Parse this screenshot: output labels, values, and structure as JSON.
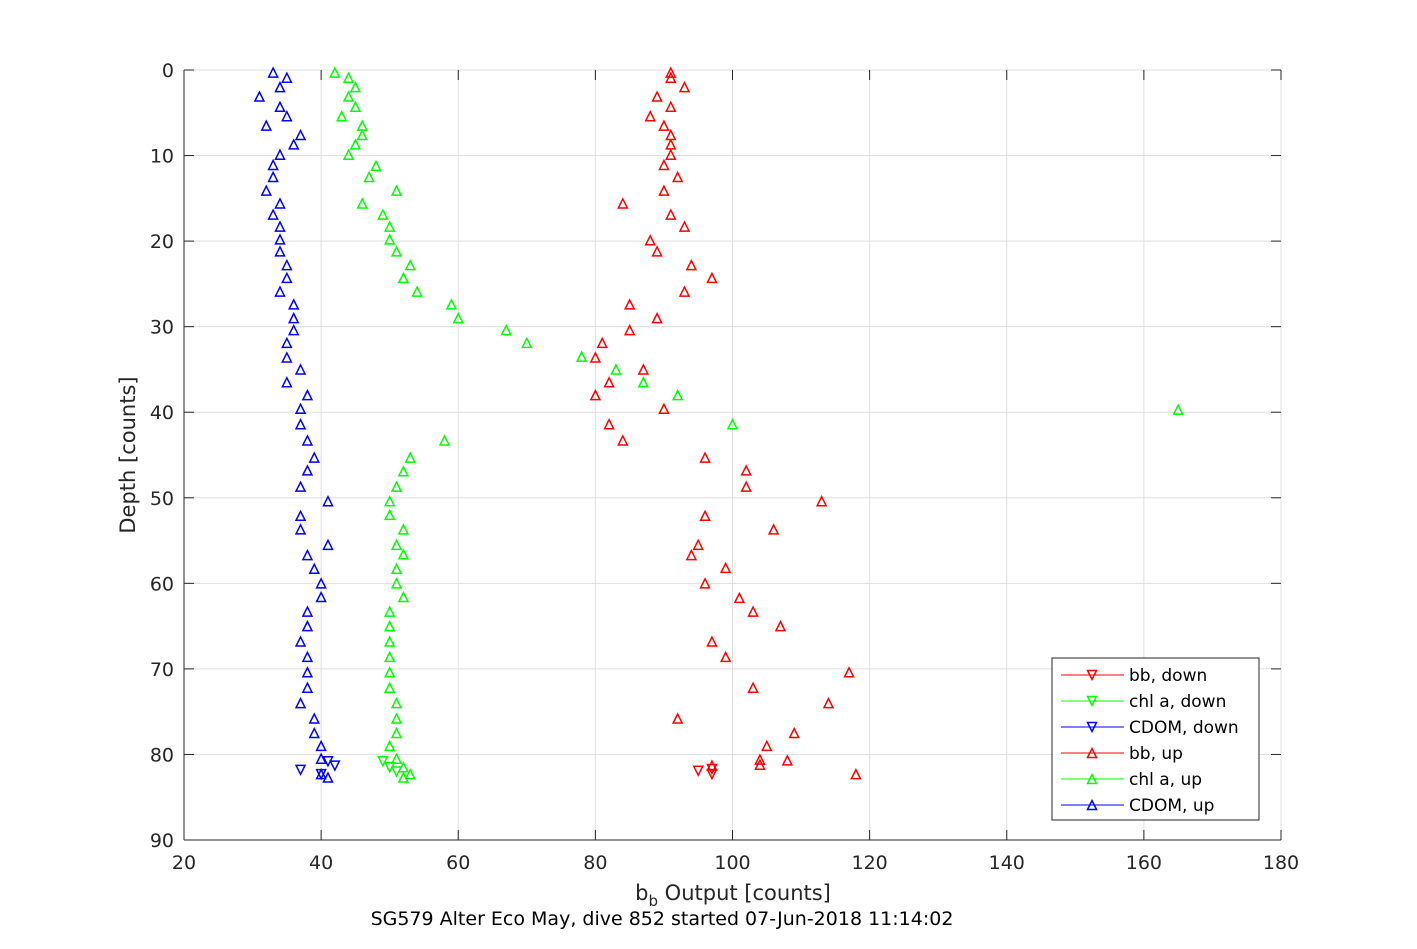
{
  "chart_data": {
    "type": "scatter",
    "xlabel": "b",
    "xlabel_subscript": "b",
    "xlabel_suffix": " Output [counts]",
    "ylabel": "Depth [counts]",
    "caption": "SG579 Alter Eco May, dive 852 started 07-Jun-2018 11:14:02",
    "xlim": [
      20,
      180
    ],
    "ylim": [
      0,
      90
    ],
    "y_reversed": true,
    "grid": true,
    "legend_position": "bottom-right",
    "xticks": [
      20,
      40,
      60,
      80,
      100,
      120,
      140,
      160,
      180
    ],
    "yticks": [
      0,
      10,
      20,
      30,
      40,
      50,
      60,
      70,
      80,
      90
    ],
    "series": [
      {
        "name": "bb, down",
        "color": "#ff0000",
        "marker": "triangle-down",
        "points": [
          [
            97,
            81.7
          ],
          [
            97,
            82.3
          ],
          [
            95,
            81.9
          ]
        ]
      },
      {
        "name": "chl a, down",
        "color": "#00ff00",
        "marker": "triangle-down",
        "points": [
          [
            49,
            80.8
          ],
          [
            50,
            81.5
          ],
          [
            51,
            82.0
          ]
        ]
      },
      {
        "name": "CDOM, down",
        "color": "#0000ff",
        "marker": "triangle-down",
        "points": [
          [
            37,
            81.8
          ],
          [
            40,
            82.3
          ],
          [
            42,
            81.3
          ],
          [
            41,
            80.8
          ]
        ]
      },
      {
        "name": "bb, up",
        "color": "#ff0000",
        "marker": "triangle-up",
        "points": [
          [
            91,
            0.3
          ],
          [
            91,
            0.9
          ],
          [
            93,
            2.0
          ],
          [
            89,
            3.1
          ],
          [
            91,
            4.3
          ],
          [
            88,
            5.4
          ],
          [
            90,
            6.5
          ],
          [
            91,
            7.6
          ],
          [
            91,
            8.7
          ],
          [
            91,
            9.9
          ],
          [
            90,
            11.1
          ],
          [
            92,
            12.5
          ],
          [
            90,
            14.1
          ],
          [
            84,
            15.6
          ],
          [
            91,
            16.9
          ],
          [
            93,
            18.3
          ],
          [
            88,
            19.9
          ],
          [
            89,
            21.2
          ],
          [
            94,
            22.8
          ],
          [
            97,
            24.3
          ],
          [
            93,
            25.9
          ],
          [
            85,
            27.4
          ],
          [
            89,
            29.0
          ],
          [
            85,
            30.4
          ],
          [
            81,
            31.9
          ],
          [
            80,
            33.6
          ],
          [
            87,
            35.0
          ],
          [
            82,
            36.5
          ],
          [
            80,
            38.0
          ],
          [
            90,
            39.6
          ],
          [
            82,
            41.4
          ],
          [
            84,
            43.3
          ],
          [
            96,
            45.3
          ],
          [
            102,
            46.8
          ],
          [
            102,
            48.7
          ],
          [
            113,
            50.4
          ],
          [
            96,
            52.1
          ],
          [
            106,
            53.7
          ],
          [
            95,
            55.5
          ],
          [
            94,
            56.7
          ],
          [
            99,
            58.2
          ],
          [
            96,
            60.0
          ],
          [
            101,
            61.7
          ],
          [
            103,
            63.3
          ],
          [
            107,
            65.0
          ],
          [
            97,
            66.8
          ],
          [
            99,
            68.6
          ],
          [
            117,
            70.4
          ],
          [
            103,
            72.2
          ],
          [
            114,
            74.0
          ],
          [
            92,
            75.8
          ],
          [
            109,
            77.5
          ],
          [
            105,
            79.0
          ],
          [
            104,
            80.6
          ],
          [
            108,
            80.7
          ],
          [
            104,
            81.2
          ],
          [
            97,
            81.3
          ],
          [
            118,
            82.3
          ]
        ]
      },
      {
        "name": "chl a, up",
        "color": "#00ff00",
        "marker": "triangle-up",
        "points": [
          [
            42,
            0.3
          ],
          [
            44,
            0.9
          ],
          [
            45,
            2.0
          ],
          [
            44,
            3.1
          ],
          [
            45,
            4.3
          ],
          [
            43,
            5.4
          ],
          [
            46,
            6.5
          ],
          [
            46,
            7.6
          ],
          [
            45,
            8.7
          ],
          [
            44,
            9.9
          ],
          [
            48,
            11.2
          ],
          [
            47,
            12.5
          ],
          [
            51,
            14.1
          ],
          [
            46,
            15.6
          ],
          [
            49,
            16.9
          ],
          [
            50,
            18.3
          ],
          [
            50,
            19.8
          ],
          [
            51,
            21.2
          ],
          [
            53,
            22.8
          ],
          [
            52,
            24.3
          ],
          [
            54,
            25.9
          ],
          [
            59,
            27.4
          ],
          [
            60,
            29.0
          ],
          [
            67,
            30.4
          ],
          [
            70,
            31.9
          ],
          [
            78,
            33.5
          ],
          [
            83,
            35.0
          ],
          [
            87,
            36.5
          ],
          [
            92,
            38.0
          ],
          [
            165,
            39.7
          ],
          [
            100,
            41.4
          ],
          [
            58,
            43.3
          ],
          [
            53,
            45.3
          ],
          [
            52,
            46.9
          ],
          [
            51,
            48.7
          ],
          [
            50,
            50.4
          ],
          [
            50,
            52.0
          ],
          [
            52,
            53.7
          ],
          [
            51,
            55.5
          ],
          [
            52,
            56.6
          ],
          [
            51,
            58.3
          ],
          [
            51,
            60.0
          ],
          [
            52,
            61.6
          ],
          [
            50,
            63.3
          ],
          [
            50,
            65.0
          ],
          [
            50,
            66.8
          ],
          [
            50,
            68.6
          ],
          [
            50,
            70.4
          ],
          [
            50,
            72.2
          ],
          [
            51,
            74.0
          ],
          [
            51,
            75.8
          ],
          [
            51,
            77.5
          ],
          [
            50,
            79.0
          ],
          [
            51,
            80.5
          ],
          [
            52,
            81.5
          ],
          [
            53,
            82.3
          ],
          [
            52,
            82.7
          ]
        ]
      },
      {
        "name": "CDOM, up",
        "color": "#0000ff",
        "marker": "triangle-up",
        "points": [
          [
            33,
            0.3
          ],
          [
            35,
            0.9
          ],
          [
            34,
            2.0
          ],
          [
            31,
            3.1
          ],
          [
            34,
            4.3
          ],
          [
            35,
            5.4
          ],
          [
            32,
            6.5
          ],
          [
            37,
            7.6
          ],
          [
            36,
            8.7
          ],
          [
            34,
            9.9
          ],
          [
            33,
            11.1
          ],
          [
            33,
            12.5
          ],
          [
            32,
            14.1
          ],
          [
            34,
            15.6
          ],
          [
            33,
            16.9
          ],
          [
            34,
            18.3
          ],
          [
            34,
            19.8
          ],
          [
            34,
            21.2
          ],
          [
            35,
            22.8
          ],
          [
            35,
            24.3
          ],
          [
            34,
            25.9
          ],
          [
            36,
            27.4
          ],
          [
            36,
            29.0
          ],
          [
            36,
            30.4
          ],
          [
            35,
            31.9
          ],
          [
            35,
            33.6
          ],
          [
            37,
            35.0
          ],
          [
            35,
            36.5
          ],
          [
            38,
            38.0
          ],
          [
            37,
            39.6
          ],
          [
            37,
            41.4
          ],
          [
            38,
            43.3
          ],
          [
            39,
            45.3
          ],
          [
            38,
            46.8
          ],
          [
            37,
            48.7
          ],
          [
            41,
            50.4
          ],
          [
            37,
            52.1
          ],
          [
            37,
            53.7
          ],
          [
            41,
            55.5
          ],
          [
            38,
            56.7
          ],
          [
            39,
            58.3
          ],
          [
            40,
            60.0
          ],
          [
            40,
            61.6
          ],
          [
            38,
            63.3
          ],
          [
            38,
            65.0
          ],
          [
            37,
            66.8
          ],
          [
            38,
            68.6
          ],
          [
            38,
            70.4
          ],
          [
            38,
            72.2
          ],
          [
            37,
            74.0
          ],
          [
            39,
            75.8
          ],
          [
            39,
            77.5
          ],
          [
            40,
            79.0
          ],
          [
            40,
            80.5
          ],
          [
            40,
            82.3
          ],
          [
            41,
            82.7
          ]
        ]
      }
    ]
  }
}
